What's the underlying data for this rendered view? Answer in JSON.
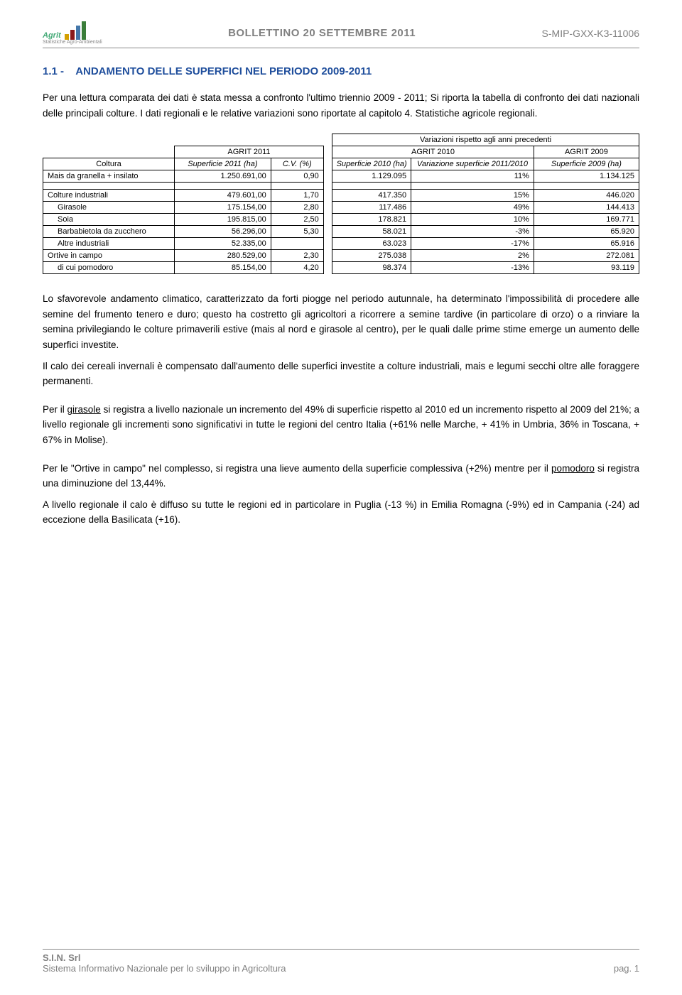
{
  "header": {
    "logo_text": "Agrit",
    "logo_sub": "Statistiche Agro-Ambientali",
    "center": "BOLLETTINO 20 SETTEMBRE 2011",
    "right": "S-MIP-GXX-K3-11006"
  },
  "section": {
    "number": "1.1 -",
    "title": "ANDAMENTO DELLE SUPERFICI NEL PERIODO 2009-2011"
  },
  "intro": "Per una lettura comparata dei dati è stata messa a confronto l'ultimo triennio 2009 - 2011; Si riporta la tabella di confronto dei dati nazionali delle principali colture. I dati regionali e le relative variazioni sono riportate al capitolo 4. Statistiche agricole regionali.",
  "table": {
    "top_header": "Variazioni rispetto agli anni precedenti",
    "h_agrit2011": "AGRIT 2011",
    "h_agrit2010": "AGRIT 2010",
    "h_agrit2009": "AGRIT 2009",
    "col_coltura": "Coltura",
    "col_sup2011": "Superficie 2011 (ha)",
    "col_cv": "C.V. (%)",
    "col_sup2010": "Superficie 2010 (ha)",
    "col_var": "Variazione superficie 2011/2010",
    "col_sup2009": "Superficie 2009 (ha)",
    "rows": [
      {
        "label": "Mais da granella + insilato",
        "indent": false,
        "s2011": "1.250.691,00",
        "cv": "0,90",
        "s2010": "1.129.095",
        "var": "11%",
        "s2009": "1.134.125"
      },
      {
        "label": "Colture industriali",
        "indent": false,
        "s2011": "479.601,00",
        "cv": "1,70",
        "s2010": "417.350",
        "var": "15%",
        "s2009": "446.020"
      },
      {
        "label": "Girasole",
        "indent": true,
        "s2011": "175.154,00",
        "cv": "2,80",
        "s2010": "117.486",
        "var": "49%",
        "s2009": "144.413"
      },
      {
        "label": "Soia",
        "indent": true,
        "s2011": "195.815,00",
        "cv": "2,50",
        "s2010": "178.821",
        "var": "10%",
        "s2009": "169.771"
      },
      {
        "label": "Barbabietola da zucchero",
        "indent": true,
        "s2011": "56.296,00",
        "cv": "5,30",
        "s2010": "58.021",
        "var": "-3%",
        "s2009": "65.920"
      },
      {
        "label": "Altre industriali",
        "indent": true,
        "s2011": "52.335,00",
        "cv": "",
        "s2010": "63.023",
        "var": "-17%",
        "s2009": "65.916"
      },
      {
        "label": "Ortive in campo",
        "indent": false,
        "s2011": "280.529,00",
        "cv": "2,30",
        "s2010": "275.038",
        "var": "2%",
        "s2009": "272.081"
      },
      {
        "label": "di cui pomodoro",
        "indent": true,
        "s2011": "85.154,00",
        "cv": "4,20",
        "s2010": "98.374",
        "var": "-13%",
        "s2009": "93.119"
      }
    ]
  },
  "para1": "Lo sfavorevole andamento climatico, caratterizzato da forti piogge nel periodo autunnale, ha determinato l'impossibilità di procedere alle semine del frumento tenero e duro; questo ha costretto gli agricoltori a ricorrere a semine tardive (in particolare di orzo) o a rinviare la semina privilegiando le colture primaverili estive (mais al nord e girasole al centro), per le quali dalle prime stime emerge un aumento delle superfici investite.",
  "para2": "Il calo dei cereali invernali è compensato dall'aumento delle superfici investite a colture industriali, mais e legumi secchi oltre alle foraggere permanenti.",
  "para3a": "Per il ",
  "para3_ul": "girasole",
  "para3b": " si registra a livello nazionale un incremento del 49% di superficie rispetto al 2010 ed un incremento rispetto al 2009 del 21%; a livello regionale gli incrementi sono significativi in tutte le regioni del centro Italia (+61% nelle Marche, + 41% in Umbria, 36% in Toscana, + 67% in Molise).",
  "para4a": "Per le \"Ortive in campo\" nel complesso, si registra una lieve aumento della superficie complessiva (+2%) mentre per il ",
  "para4_ul": "pomodoro",
  "para4b": " si registra una diminuzione del 13,44%.",
  "para5": "A livello regionale il calo è diffuso su tutte le regioni ed in particolare in Puglia (-13 %) in Emilia Romagna (-9%) ed in Campania (-24) ad eccezione della Basilicata (+16).",
  "footer": {
    "line1": "S.I.N. Srl",
    "line2": "Sistema Informativo Nazionale per lo sviluppo in Agricoltura",
    "page": "pag. 1"
  }
}
